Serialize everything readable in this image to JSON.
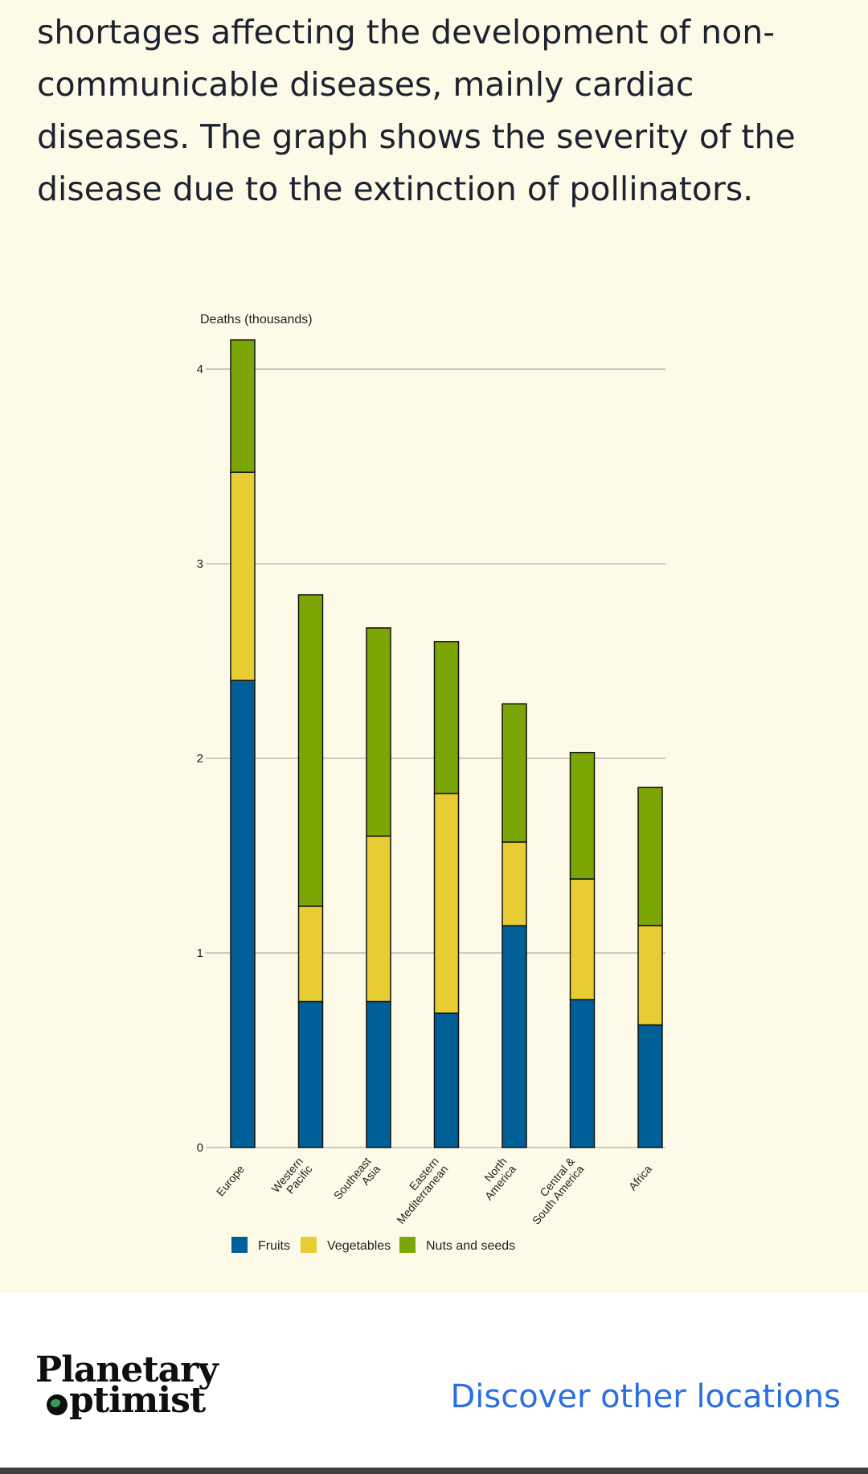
{
  "article": {
    "paragraph_lines": [
      "shortages affecting the development of non-",
      "communicable diseases, mainly cardiac",
      "diseases. The graph shows the severity of the",
      "disease due to the extinction of pollinators."
    ]
  },
  "chart_data": {
    "type": "bar",
    "stacked": true,
    "title": "",
    "xlabel": "",
    "ylabel": "Deaths (thousands)",
    "ylim": [
      0,
      4.2
    ],
    "yticks": [
      0,
      1,
      2,
      3,
      4
    ],
    "grid": true,
    "legend_position": "bottom-left",
    "categories": [
      [
        "Europe"
      ],
      [
        "Western",
        "Pacific"
      ],
      [
        "Southeast",
        "Asia"
      ],
      [
        "Eastern",
        "Mediterranean"
      ],
      [
        "North",
        "America"
      ],
      [
        "Central &",
        "South America"
      ],
      [
        "Africa"
      ]
    ],
    "series": [
      {
        "name": "Fruits",
        "color": "#005f96",
        "values": [
          2.4,
          0.75,
          0.75,
          0.69,
          1.14,
          0.76,
          0.63
        ]
      },
      {
        "name": "Vegetables",
        "color": "#e8cc33",
        "values": [
          1.07,
          0.49,
          0.85,
          1.13,
          0.43,
          0.62,
          0.51
        ]
      },
      {
        "name": "Nuts and seeds",
        "color": "#7ba605",
        "values": [
          0.68,
          1.6,
          1.07,
          0.78,
          0.71,
          0.65,
          0.71
        ]
      }
    ]
  },
  "footer": {
    "logo_text_line1": "Planetary",
    "logo_text_line2": "ptimist",
    "discover_link": "Discover other locations"
  }
}
